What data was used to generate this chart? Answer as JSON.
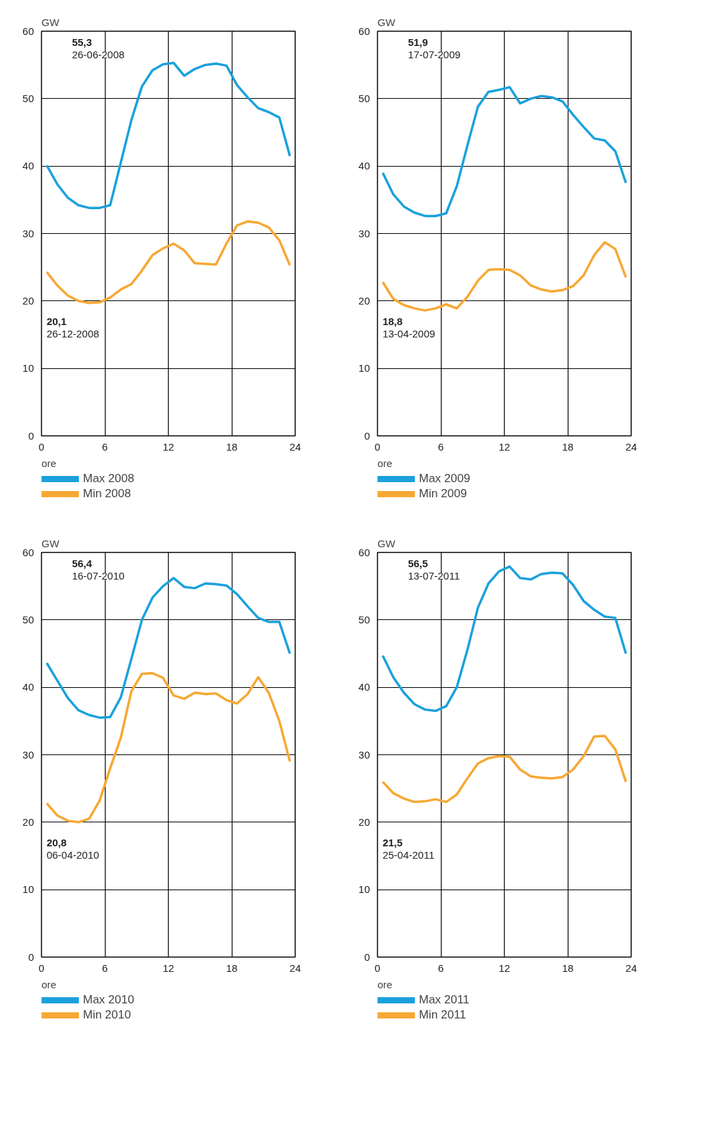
{
  "chart_data": [
    {
      "type": "line",
      "ylabel": "GW",
      "xlabel": "ore",
      "x": [
        0.5,
        1.5,
        2.5,
        3.5,
        4.5,
        5.5,
        6.5,
        7.5,
        8.5,
        9.5,
        10.5,
        11.5,
        12.5,
        13.5,
        14.5,
        15.5,
        16.5,
        17.5,
        18.5,
        19.5,
        20.5,
        21.5,
        22.5,
        23.5
      ],
      "xlim": [
        0,
        24
      ],
      "xticks": [
        0,
        6,
        12,
        18,
        24
      ],
      "ylim": [
        0,
        60
      ],
      "yticks": [
        0,
        10,
        20,
        30,
        40,
        50,
        60
      ],
      "grid": true,
      "legend": "bottom",
      "line_style": "solid",
      "series": [
        {
          "name": "Max 2008",
          "color": "#1ba1dc",
          "values": [
            40.1,
            37.3,
            35.3,
            34.2,
            33.8,
            33.8,
            34.2,
            40.5,
            46.8,
            51.8,
            54.2,
            55.1,
            55.3,
            53.4,
            54.4,
            55.0,
            55.2,
            54.9,
            52.0,
            50.2,
            48.6,
            48.0,
            47.2,
            41.5
          ]
        },
        {
          "name": "Min 2008",
          "color": "#f7a833",
          "values": [
            24.3,
            22.3,
            20.8,
            20.0,
            19.7,
            19.8,
            20.5,
            21.7,
            22.5,
            24.5,
            26.8,
            27.8,
            28.5,
            27.5,
            25.6,
            25.5,
            25.4,
            28.5,
            31.2,
            31.8,
            31.6,
            30.9,
            29.0,
            25.3
          ]
        }
      ],
      "annotations": [
        "55,3\n26-06-2008",
        "20,1\n26-12-2008"
      ]
    },
    {
      "type": "line",
      "ylabel": "GW",
      "xlabel": "ore",
      "x": [
        0.5,
        1.5,
        2.5,
        3.5,
        4.5,
        5.5,
        6.5,
        7.5,
        8.5,
        9.5,
        10.5,
        11.5,
        12.5,
        13.5,
        14.5,
        15.5,
        16.5,
        17.5,
        18.5,
        19.5,
        20.5,
        21.5,
        22.5,
        23.5
      ],
      "xlim": [
        0,
        24
      ],
      "xticks": [
        0,
        6,
        12,
        18,
        24
      ],
      "ylim": [
        0,
        60
      ],
      "yticks": [
        0,
        10,
        20,
        30,
        40,
        50,
        60
      ],
      "grid": true,
      "legend": "bottom",
      "line_style": "solid",
      "series": [
        {
          "name": "Max 2009",
          "color": "#1ba1dc",
          "values": [
            39.0,
            35.8,
            34.0,
            33.1,
            32.6,
            32.6,
            33.0,
            37.0,
            43.0,
            48.8,
            51.0,
            51.3,
            51.7,
            49.3,
            50.0,
            50.4,
            50.2,
            49.6,
            47.6,
            45.8,
            44.1,
            43.8,
            42.2,
            37.5
          ]
        },
        {
          "name": "Min 2009",
          "color": "#f7a833",
          "values": [
            22.8,
            20.3,
            19.4,
            18.9,
            18.6,
            18.9,
            19.5,
            18.9,
            20.6,
            23.0,
            24.6,
            24.7,
            24.6,
            23.8,
            22.3,
            21.7,
            21.4,
            21.6,
            22.2,
            23.8,
            26.8,
            28.7,
            27.7,
            23.5
          ]
        }
      ],
      "annotations": [
        "51,9\n17-07-2009",
        "18,8\n13-04-2009"
      ]
    },
    {
      "type": "line",
      "ylabel": "GW",
      "xlabel": "ore",
      "x": [
        0.5,
        1.5,
        2.5,
        3.5,
        4.5,
        5.5,
        6.5,
        7.5,
        8.5,
        9.5,
        10.5,
        11.5,
        12.5,
        13.5,
        14.5,
        15.5,
        16.5,
        17.5,
        18.5,
        19.5,
        20.5,
        21.5,
        22.5,
        23.5
      ],
      "xlim": [
        0,
        24
      ],
      "xticks": [
        0,
        6,
        12,
        18,
        24
      ],
      "ylim": [
        0,
        60
      ],
      "yticks": [
        0,
        10,
        20,
        30,
        40,
        50,
        60
      ],
      "grid": true,
      "legend": "bottom",
      "line_style": "solid",
      "series": [
        {
          "name": "Max 2010",
          "color": "#1ba1dc",
          "values": [
            43.6,
            41.0,
            38.4,
            36.6,
            35.9,
            35.5,
            35.6,
            38.5,
            44.2,
            50.0,
            53.3,
            55.0,
            56.2,
            54.9,
            54.7,
            55.4,
            55.3,
            55.1,
            53.8,
            52.0,
            50.3,
            49.7,
            49.7,
            45.0
          ]
        },
        {
          "name": "Min 2010",
          "color": "#f7a833",
          "values": [
            22.8,
            21.0,
            20.2,
            20.0,
            20.5,
            23.2,
            28.0,
            32.5,
            39.4,
            42.0,
            42.1,
            41.4,
            38.8,
            38.3,
            39.2,
            39.0,
            39.1,
            38.1,
            37.6,
            39.0,
            41.5,
            39.2,
            35.0,
            29.0
          ]
        }
      ],
      "annotations": [
        "56,4\n16-07-2010",
        "20,8\n06-04-2010"
      ]
    },
    {
      "type": "line",
      "ylabel": "GW",
      "xlabel": "ore",
      "x": [
        0.5,
        1.5,
        2.5,
        3.5,
        4.5,
        5.5,
        6.5,
        7.5,
        8.5,
        9.5,
        10.5,
        11.5,
        12.5,
        13.5,
        14.5,
        15.5,
        16.5,
        17.5,
        18.5,
        19.5,
        20.5,
        21.5,
        22.5,
        23.5
      ],
      "xlim": [
        0,
        24
      ],
      "xticks": [
        0,
        6,
        12,
        18,
        24
      ],
      "ylim": [
        0,
        60
      ],
      "yticks": [
        0,
        10,
        20,
        30,
        40,
        50,
        60
      ],
      "grid": true,
      "legend": "bottom",
      "line_style": "solid",
      "series": [
        {
          "name": "Max 2011",
          "color": "#1ba1dc",
          "values": [
            44.7,
            41.5,
            39.2,
            37.5,
            36.7,
            36.5,
            37.2,
            40.0,
            45.5,
            51.8,
            55.4,
            57.2,
            57.9,
            56.2,
            56.0,
            56.8,
            57.0,
            56.9,
            55.2,
            52.8,
            51.5,
            50.5,
            50.3,
            45.0
          ]
        },
        {
          "name": "Min 2011",
          "color": "#f7a833",
          "values": [
            26.0,
            24.3,
            23.5,
            23.0,
            23.1,
            23.4,
            23.0,
            24.1,
            26.5,
            28.7,
            29.5,
            29.8,
            29.7,
            27.8,
            26.8,
            26.6,
            26.5,
            26.7,
            27.8,
            29.8,
            32.7,
            32.8,
            30.8,
            26.0
          ]
        }
      ],
      "annotations": [
        "56,5\n13-07-2011",
        "21,5\n25-04-2011"
      ]
    }
  ]
}
